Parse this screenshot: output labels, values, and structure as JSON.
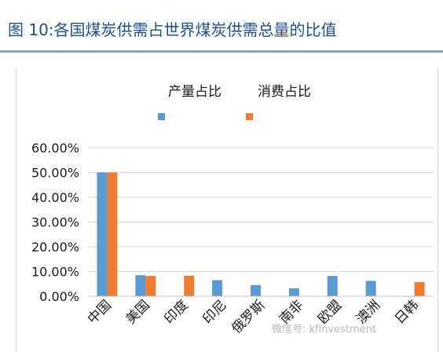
{
  "header": {
    "title": "图 10:各国煤炭供需占世界煤炭供需总量的比值"
  },
  "watermark": {
    "text": "微信号: kfinvestment"
  },
  "chart_data": {
    "type": "bar",
    "title": "",
    "xlabel": "",
    "ylabel": "",
    "categories": [
      "中国",
      "美国",
      "印度",
      "印尼",
      "俄罗斯",
      "南非",
      "欧盟",
      "澳洲",
      "日韩"
    ],
    "series": [
      {
        "name": "产量占比",
        "color": "#5b9bd5",
        "values": [
          50.0,
          8.5,
          0.0,
          6.5,
          4.5,
          3.2,
          8.2,
          6.2,
          0.0
        ]
      },
      {
        "name": "消费占比",
        "color": "#ed7d31",
        "values": [
          50.0,
          8.2,
          8.3,
          0.0,
          0.0,
          0.0,
          0.0,
          0.0,
          5.7
        ]
      }
    ],
    "ylim": [
      0,
      60
    ],
    "yticks": [
      0,
      10,
      20,
      30,
      40,
      50,
      60
    ],
    "ytick_labels": [
      "0.00%",
      "10.00%",
      "20.00%",
      "30.00%",
      "40.00%",
      "50.00%",
      "60.00%"
    ],
    "grid": true,
    "legend": "top"
  }
}
